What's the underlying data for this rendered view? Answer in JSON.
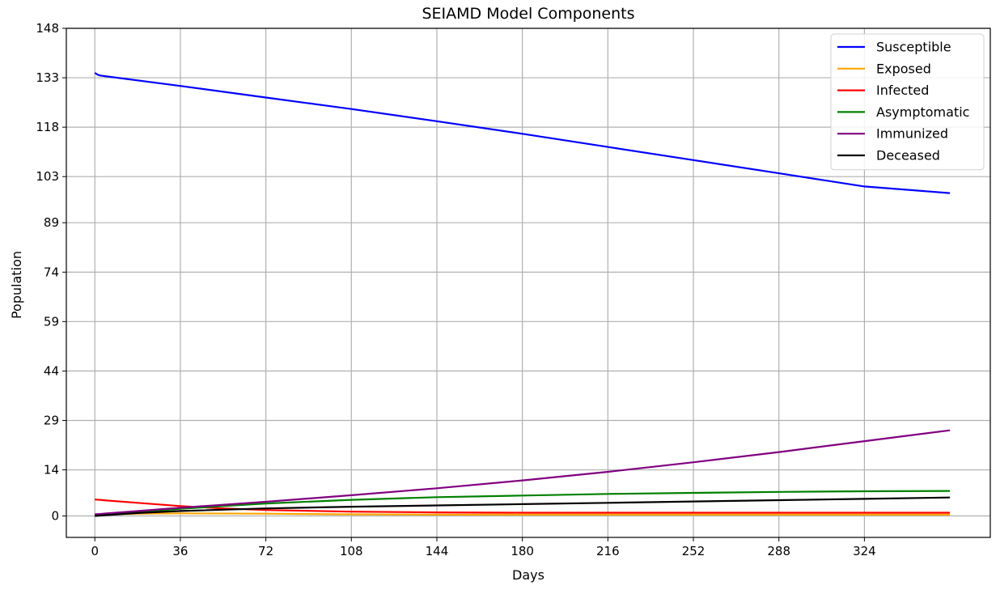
{
  "chart_data": {
    "type": "line",
    "title": "SEIAMD Model Components",
    "xlabel": "Days",
    "ylabel": "Population",
    "xlim": [
      -12,
      377
    ],
    "ylim": [
      -6.5,
      148
    ],
    "xticks": [
      0,
      36,
      72,
      108,
      144,
      180,
      216,
      252,
      288,
      324
    ],
    "yticks": [
      0,
      14,
      29,
      44,
      59,
      74,
      89,
      103,
      118,
      133,
      148
    ],
    "grid": true,
    "legend_position": "top-right",
    "series": [
      {
        "name": "Susceptible",
        "color": "#0000ff",
        "points": [
          [
            0,
            134.5
          ],
          [
            1,
            134.0
          ],
          [
            2,
            133.7
          ],
          [
            36,
            130.5
          ],
          [
            72,
            127.0
          ],
          [
            108,
            123.5
          ],
          [
            144,
            119.8
          ],
          [
            180,
            116.0
          ],
          [
            216,
            112.0
          ],
          [
            252,
            108.0
          ],
          [
            288,
            104.0
          ],
          [
            324,
            100.0
          ],
          [
            360,
            98.0
          ]
        ]
      },
      {
        "name": "Exposed",
        "color": "#ffa500",
        "points": [
          [
            0,
            0.4
          ],
          [
            20,
            0.7
          ],
          [
            36,
            0.8
          ],
          [
            72,
            0.7
          ],
          [
            108,
            0.5
          ],
          [
            144,
            0.4
          ],
          [
            180,
            0.4
          ],
          [
            216,
            0.4
          ],
          [
            252,
            0.4
          ],
          [
            288,
            0.4
          ],
          [
            324,
            0.4
          ],
          [
            360,
            0.4
          ]
        ]
      },
      {
        "name": "Infected",
        "color": "#ff0000",
        "points": [
          [
            0,
            5.0
          ],
          [
            18,
            4.0
          ],
          [
            36,
            3.0
          ],
          [
            54,
            2.3
          ],
          [
            72,
            1.8
          ],
          [
            108,
            1.3
          ],
          [
            144,
            1.1
          ],
          [
            180,
            1.0
          ],
          [
            216,
            1.0
          ],
          [
            252,
            1.0
          ],
          [
            288,
            1.0
          ],
          [
            324,
            1.0
          ],
          [
            360,
            1.0
          ]
        ]
      },
      {
        "name": "Asymptomatic",
        "color": "#008000",
        "points": [
          [
            0,
            0.2
          ],
          [
            18,
            1.2
          ],
          [
            36,
            2.2
          ],
          [
            54,
            3.0
          ],
          [
            72,
            3.8
          ],
          [
            108,
            4.9
          ],
          [
            144,
            5.7
          ],
          [
            180,
            6.2
          ],
          [
            216,
            6.7
          ],
          [
            252,
            7.0
          ],
          [
            288,
            7.3
          ],
          [
            324,
            7.5
          ],
          [
            360,
            7.6
          ]
        ]
      },
      {
        "name": "Immunized",
        "color": "#800080",
        "points": [
          [
            0,
            0.5
          ],
          [
            36,
            2.5
          ],
          [
            72,
            4.3
          ],
          [
            108,
            6.3
          ],
          [
            144,
            8.4
          ],
          [
            180,
            10.8
          ],
          [
            216,
            13.4
          ],
          [
            252,
            16.3
          ],
          [
            288,
            19.4
          ],
          [
            324,
            22.7
          ],
          [
            360,
            26.0
          ]
        ]
      },
      {
        "name": "Deceased",
        "color": "#000000",
        "points": [
          [
            0,
            0.0
          ],
          [
            18,
            0.9
          ],
          [
            36,
            1.5
          ],
          [
            72,
            2.3
          ],
          [
            108,
            2.8
          ],
          [
            144,
            3.2
          ],
          [
            180,
            3.6
          ],
          [
            216,
            4.0
          ],
          [
            252,
            4.4
          ],
          [
            288,
            4.8
          ],
          [
            324,
            5.2
          ],
          [
            360,
            5.6
          ]
        ]
      }
    ]
  }
}
